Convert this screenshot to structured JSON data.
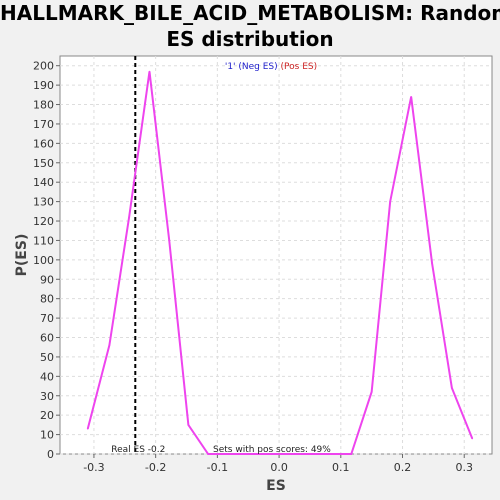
{
  "chart_data": {
    "type": "line",
    "title_line1": "HALLMARK_BILE_ACID_METABOLISM: Random",
    "title_line2": "ES distribution",
    "xlabel": "ES",
    "ylabel": "P(ES)",
    "xlim": [
      -0.355,
      0.345
    ],
    "ylim": [
      0,
      205
    ],
    "x_ticks": [
      -0.3,
      -0.2,
      -0.1,
      0.0,
      0.1,
      0.2,
      0.3
    ],
    "x_tick_labels": [
      "-0.3",
      "-0.2",
      "-0.1",
      "0.0",
      "0.1",
      "0.2",
      "0.3"
    ],
    "y_ticks": [
      0,
      10,
      20,
      30,
      40,
      50,
      60,
      70,
      80,
      90,
      100,
      110,
      120,
      130,
      140,
      150,
      160,
      170,
      180,
      190,
      200
    ],
    "grid": true,
    "legend": {
      "placement": "top-center",
      "entries": [
        {
          "text": "'1' (Neg ES)",
          "color": "#2222cc"
        },
        {
          "text": "(Pos ES)",
          "color": "#cc2222"
        }
      ]
    },
    "series": [
      {
        "color": "#ee44ee",
        "x": [
          -0.31,
          -0.275,
          -0.243,
          -0.21,
          -0.178,
          -0.147,
          -0.115,
          0.117,
          0.15,
          0.18,
          0.214,
          0.248,
          0.28,
          0.313
        ],
        "y": [
          13,
          56,
          122,
          197,
          110,
          15,
          0,
          0,
          32,
          130,
          184,
          98,
          34,
          8
        ]
      }
    ],
    "real_es": -0.233,
    "real_es_label": "Real ES -0.2",
    "pos_scores_label": "Sets with pos scores: 49%"
  },
  "colors": {
    "background": "#f1f1f1",
    "plot_background": "#ffffff",
    "line": "#ee44ee",
    "grid": "#dddddd"
  }
}
